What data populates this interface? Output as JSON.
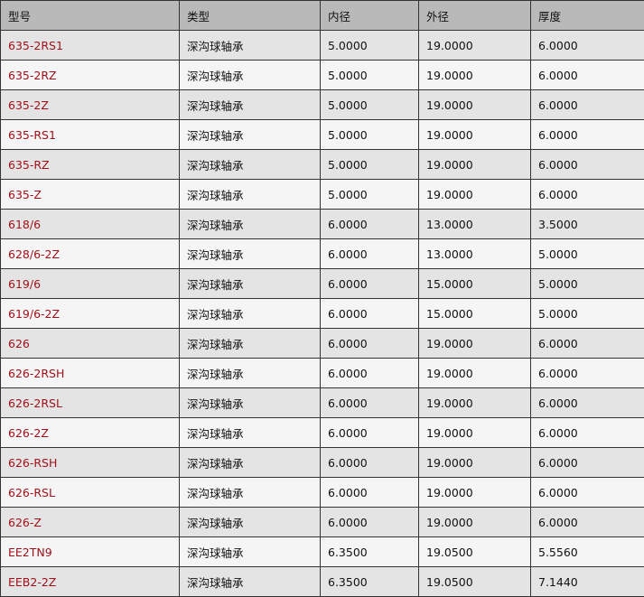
{
  "colors": {
    "header_bg": "#b9b9b9",
    "row_odd": "#e4e4e4",
    "row_even": "#f5f5f5",
    "link": "#a0101a",
    "border": "#333333"
  },
  "table": {
    "headers": [
      "型号",
      "类型",
      "内径",
      "外径",
      "厚度"
    ],
    "rows": [
      [
        "635-2RS1",
        "深沟球轴承",
        "5.0000",
        "19.0000",
        "6.0000"
      ],
      [
        "635-2RZ",
        "深沟球轴承",
        "5.0000",
        "19.0000",
        "6.0000"
      ],
      [
        "635-2Z",
        "深沟球轴承",
        "5.0000",
        "19.0000",
        "6.0000"
      ],
      [
        "635-RS1",
        "深沟球轴承",
        "5.0000",
        "19.0000",
        "6.0000"
      ],
      [
        "635-RZ",
        "深沟球轴承",
        "5.0000",
        "19.0000",
        "6.0000"
      ],
      [
        "635-Z",
        "深沟球轴承",
        "5.0000",
        "19.0000",
        "6.0000"
      ],
      [
        "618/6",
        "深沟球轴承",
        "6.0000",
        "13.0000",
        "3.5000"
      ],
      [
        "628/6-2Z",
        "深沟球轴承",
        "6.0000",
        "13.0000",
        "5.0000"
      ],
      [
        "619/6",
        "深沟球轴承",
        "6.0000",
        "15.0000",
        "5.0000"
      ],
      [
        "619/6-2Z",
        "深沟球轴承",
        "6.0000",
        "15.0000",
        "5.0000"
      ],
      [
        "626",
        "深沟球轴承",
        "6.0000",
        "19.0000",
        "6.0000"
      ],
      [
        "626-2RSH",
        "深沟球轴承",
        "6.0000",
        "19.0000",
        "6.0000"
      ],
      [
        "626-2RSL",
        "深沟球轴承",
        "6.0000",
        "19.0000",
        "6.0000"
      ],
      [
        "626-2Z",
        "深沟球轴承",
        "6.0000",
        "19.0000",
        "6.0000"
      ],
      [
        "626-RSH",
        "深沟球轴承",
        "6.0000",
        "19.0000",
        "6.0000"
      ],
      [
        "626-RSL",
        "深沟球轴承",
        "6.0000",
        "19.0000",
        "6.0000"
      ],
      [
        "626-Z",
        "深沟球轴承",
        "6.0000",
        "19.0000",
        "6.0000"
      ],
      [
        "EE2TN9",
        "深沟球轴承",
        "6.3500",
        "19.0500",
        "5.5560"
      ],
      [
        "EEB2-2Z",
        "深沟球轴承",
        "6.3500",
        "19.0500",
        "7.1440"
      ]
    ]
  }
}
